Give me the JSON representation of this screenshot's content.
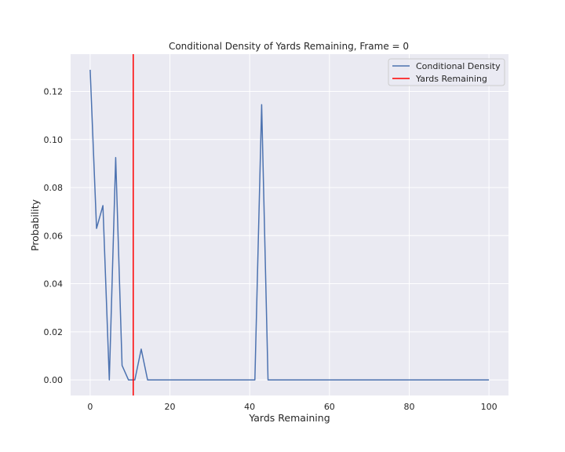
{
  "chart_data": {
    "type": "line",
    "title": "Conditional Density of Yards Remaining, Frame = 0",
    "xlabel": "Yards Remaining",
    "ylabel": "Probability",
    "xlim": [
      -4.9,
      104.9
    ],
    "ylim": [
      -0.0065,
      0.1355
    ],
    "xticks": [
      0,
      20,
      40,
      60,
      80,
      100
    ],
    "yticks": [
      0.0,
      0.02,
      0.04,
      0.06,
      0.08,
      0.1,
      0.12
    ],
    "xtick_labels": [
      "0",
      "20",
      "40",
      "60",
      "80",
      "100"
    ],
    "ytick_labels": [
      "0.00",
      "0.02",
      "0.04",
      "0.06",
      "0.08",
      "0.10",
      "0.12"
    ],
    "grid": true,
    "legend_position": "top-right",
    "background": "#eaeaf2",
    "series": [
      {
        "name": "Conditional Density",
        "color": "#4c72b0",
        "x": [
          0,
          1.6,
          3.2,
          4.8,
          6.4,
          8.0,
          9.6,
          11.2,
          12.8,
          14.4,
          41.3,
          43.0,
          44.6,
          100
        ],
        "y": [
          0.129,
          0.063,
          0.0725,
          0.0,
          0.0925,
          0.006,
          0.0,
          0.0,
          0.0128,
          0.0,
          0.0,
          0.1145,
          0.0,
          0.0
        ]
      }
    ],
    "vlines": [
      {
        "name": "Yards Remaining",
        "x": 10.8,
        "color": "#ff0000"
      }
    ]
  }
}
